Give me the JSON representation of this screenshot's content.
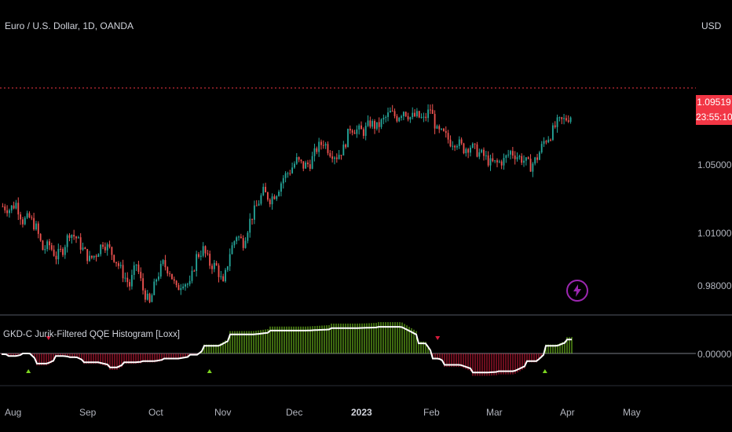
{
  "header": {
    "symbol": "Euro / U.S. Dollar, 1D, OANDA",
    "currency": "USD"
  },
  "indicator": {
    "title": "GKD-C Jurik-Filtered QQE Histogram [Loxx]",
    "zero_label": "0.00000"
  },
  "price_axis": {
    "labels": [
      "1.05000",
      "1.01000",
      "0.98000"
    ],
    "last_price": "1.09519",
    "countdown": "23:55:10"
  },
  "time_axis": {
    "labels": [
      "Aug",
      "Sep",
      "Oct",
      "Nov",
      "Dec",
      "2023",
      "Feb",
      "Mar",
      "Apr",
      "May"
    ]
  },
  "colors": {
    "up": "#26a69a",
    "down": "#ef5350",
    "hist_up": "#7cd420",
    "hist_down": "#d81b3c",
    "price_line": "#f23645",
    "bolt": "#9c27b0"
  },
  "icons": {
    "alert": "lightning-bolt-icon"
  },
  "chart_data": {
    "type": "candlestick",
    "ylim": [
      0.955,
      1.12
    ],
    "path": [
      1.03,
      1.028,
      1.032,
      1.02,
      1.022,
      1.015,
      1.0,
      1.003,
      0.995,
      1.0,
      1.012,
      1.008,
      1.0,
      0.993,
      0.997,
      1.005,
      1.0,
      0.992,
      0.983,
      0.975,
      0.99,
      0.972,
      0.962,
      0.98,
      0.99,
      0.985,
      0.972,
      0.978,
      0.975,
      0.995,
      1.0,
      0.99,
      0.988,
      0.975,
      0.998,
      1.01,
      1.005,
      1.02,
      1.03,
      1.04,
      1.035,
      1.04,
      1.05,
      1.055,
      1.062,
      1.058,
      1.06,
      1.07,
      1.075,
      1.068,
      1.065,
      1.07,
      1.085,
      1.083,
      1.082,
      1.088,
      1.085,
      1.09,
      1.095,
      1.092,
      1.097,
      1.092,
      1.093,
      1.09,
      1.098,
      1.082,
      1.08,
      1.075,
      1.075,
      1.07,
      1.072,
      1.068,
      1.065,
      1.06,
      1.06,
      1.062,
      1.068,
      1.065,
      1.062,
      1.058,
      1.064,
      1.075,
      1.08,
      1.088,
      1.09,
      1.093
    ],
    "hist_segments": [
      {
        "from": 0,
        "to": 1,
        "v": -0.03
      },
      {
        "from": 1,
        "to": 3,
        "v": -0.1
      },
      {
        "from": 3,
        "to": 5,
        "v": 0.0
      },
      {
        "from": 5,
        "to": 8,
        "v": -0.4
      },
      {
        "from": 8,
        "to": 10,
        "v": -0.1
      },
      {
        "from": 10,
        "to": 12,
        "v": -0.15
      },
      {
        "from": 12,
        "to": 16,
        "v": -0.35
      },
      {
        "from": 16,
        "to": 18,
        "v": -0.55
      },
      {
        "from": 18,
        "to": 21,
        "v": -0.35
      },
      {
        "from": 21,
        "to": 24,
        "v": -0.3
      },
      {
        "from": 24,
        "to": 28,
        "v": -0.2
      },
      {
        "from": 28,
        "to": 30,
        "v": -0.05
      },
      {
        "from": 30,
        "to": 34,
        "v": 0.3
      },
      {
        "from": 34,
        "to": 40,
        "v": 0.75
      },
      {
        "from": 40,
        "to": 49,
        "v": 0.9
      },
      {
        "from": 49,
        "to": 56,
        "v": 1.0
      },
      {
        "from": 56,
        "to": 62,
        "v": 1.05
      },
      {
        "from": 62,
        "to": 64,
        "v": 0.4
      },
      {
        "from": 64,
        "to": 66,
        "v": -0.2
      },
      {
        "from": 66,
        "to": 70,
        "v": -0.45
      },
      {
        "from": 70,
        "to": 74,
        "v": -0.75
      },
      {
        "from": 74,
        "to": 78,
        "v": -0.7
      },
      {
        "from": 78,
        "to": 81,
        "v": -0.3
      },
      {
        "from": 81,
        "to": 84,
        "v": 0.3
      },
      {
        "from": 84,
        "to": 86,
        "v": 0.55
      }
    ],
    "signal_up": [
      4,
      31,
      81
    ],
    "signal_down": [
      7,
      65
    ]
  }
}
